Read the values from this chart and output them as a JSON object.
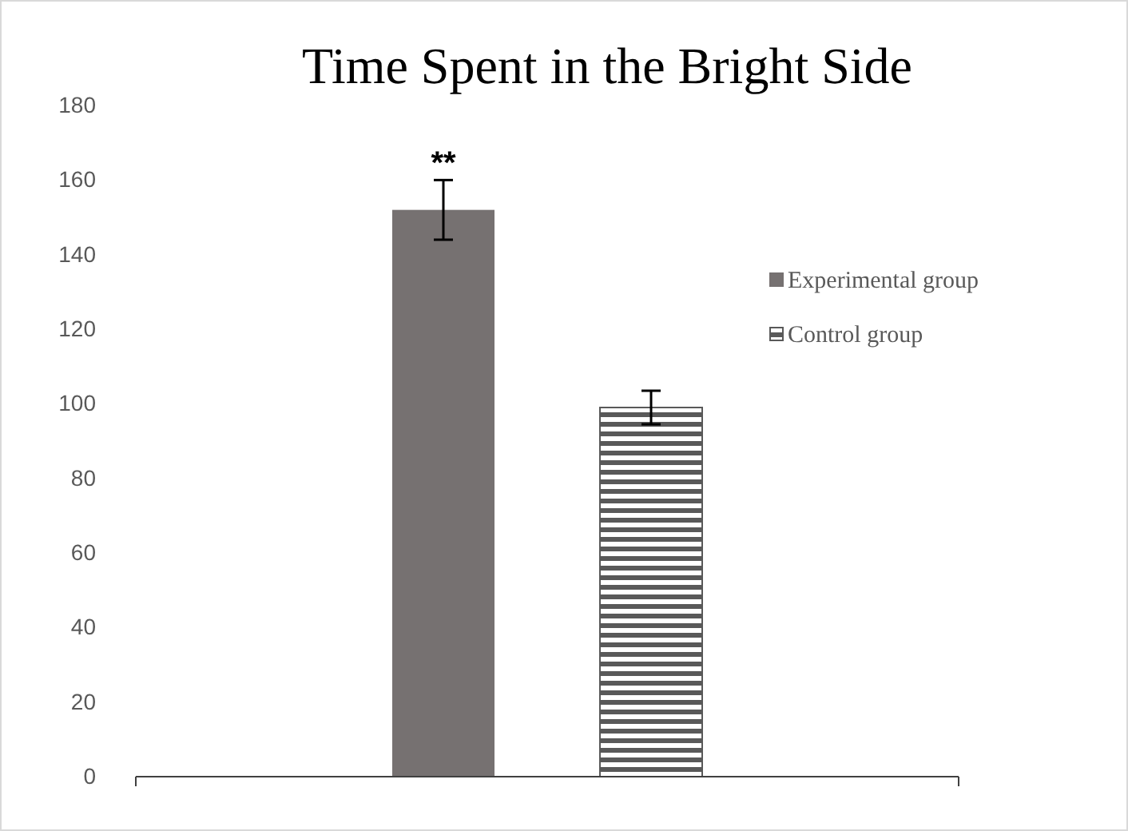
{
  "chart_data": {
    "type": "bar",
    "title": "Time Spent in the Bright Side",
    "categories": [
      null
    ],
    "series": [
      {
        "name": "Experimental group",
        "color": "#767171",
        "values": [
          152
        ],
        "errors": [
          8
        ]
      },
      {
        "name": "Control group",
        "color": "#595959",
        "values": [
          99
        ],
        "errors": [
          4.5
        ]
      }
    ],
    "ylim": [
      0,
      180
    ],
    "yticks": [
      0,
      20,
      40,
      60,
      80,
      100,
      120,
      140,
      160,
      180
    ],
    "grid": false,
    "legend": "right",
    "annotations": [
      "**"
    ]
  }
}
